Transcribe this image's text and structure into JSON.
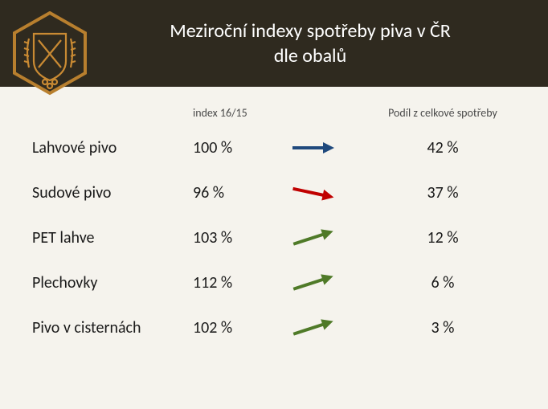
{
  "title_line1": "Meziroční indexy spotřeby piva v ČR",
  "title_line2": "dle obalů",
  "header_bg": "#2f2a1f",
  "body_bg": "#f5f3ed",
  "title_color": "#ffffff",
  "text_color": "#1a1a1a",
  "subhead_color": "#4a4a4a",
  "logo": {
    "hex_border": "#b87f2e",
    "hex_fill": "#2f2a1f",
    "emblem_stroke": "#c98a33"
  },
  "columns": {
    "index_label": "index 16/15",
    "share_label": "Podíl z celkové spotřeby"
  },
  "arrows": {
    "flat": {
      "color": "#1f497d",
      "angle": 0
    },
    "down": {
      "color": "#c00000",
      "angle": 12
    },
    "up": {
      "color": "#4f7a28",
      "angle": -18
    }
  },
  "rows": [
    {
      "label": "Lahvové pivo",
      "index": "100 %",
      "share": "42 %",
      "trend": "flat"
    },
    {
      "label": "Sudové pivo",
      "index": "96 %",
      "share": "37 %",
      "trend": "down"
    },
    {
      "label": "PET lahve",
      "index": "103 %",
      "share": "12 %",
      "trend": "up"
    },
    {
      "label": "Plechovky",
      "index": "112 %",
      "share": "6 %",
      "trend": "up"
    },
    {
      "label": "Pivo v cisternách",
      "index": "102 %",
      "share": "3 %",
      "trend": "up"
    }
  ]
}
